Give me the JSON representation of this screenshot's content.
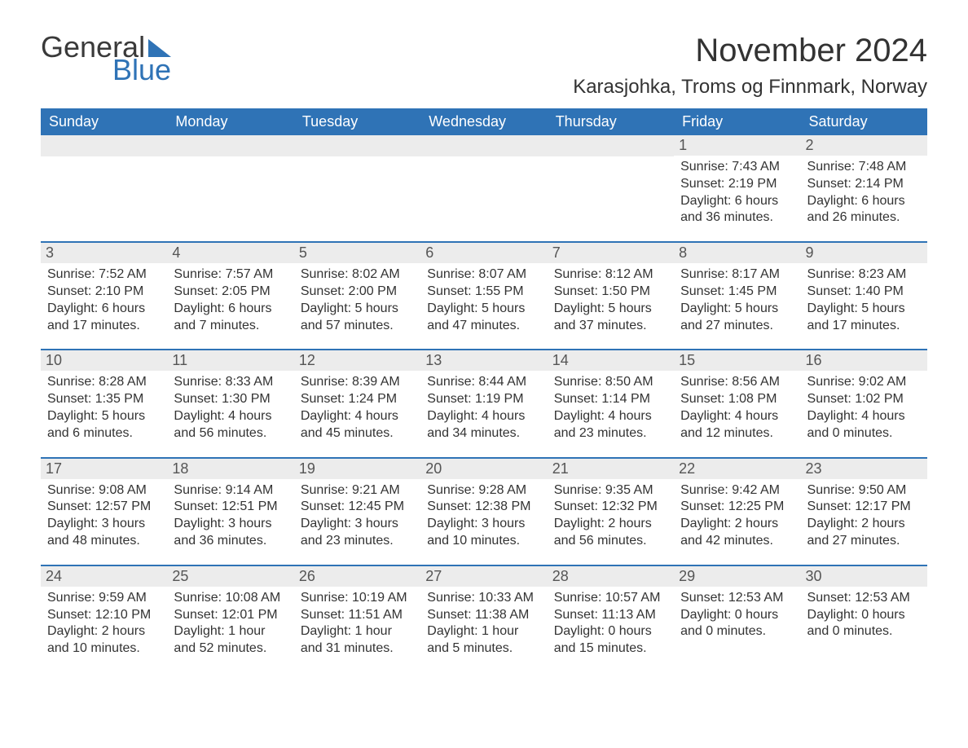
{
  "logo": {
    "word1": "General",
    "word2": "Blue"
  },
  "title": "November 2024",
  "location": "Karasjohka, Troms og Finnmark, Norway",
  "colors": {
    "header_bg": "#2f73b6",
    "header_text": "#ffffff",
    "daynum_bg": "#ececec",
    "text": "#333333",
    "page_bg": "#ffffff"
  },
  "fonts": {
    "title_size_pt": 40,
    "location_size_pt": 24,
    "dow_size_pt": 18,
    "daynum_size_pt": 18,
    "body_size_pt": 16
  },
  "days_of_week": [
    "Sunday",
    "Monday",
    "Tuesday",
    "Wednesday",
    "Thursday",
    "Friday",
    "Saturday"
  ],
  "weeks": [
    [
      null,
      null,
      null,
      null,
      null,
      {
        "n": "1",
        "lines": [
          "Sunrise: 7:43 AM",
          "Sunset: 2:19 PM",
          "Daylight: 6 hours and 36 minutes."
        ]
      },
      {
        "n": "2",
        "lines": [
          "Sunrise: 7:48 AM",
          "Sunset: 2:14 PM",
          "Daylight: 6 hours and 26 minutes."
        ]
      }
    ],
    [
      {
        "n": "3",
        "lines": [
          "Sunrise: 7:52 AM",
          "Sunset: 2:10 PM",
          "Daylight: 6 hours and 17 minutes."
        ]
      },
      {
        "n": "4",
        "lines": [
          "Sunrise: 7:57 AM",
          "Sunset: 2:05 PM",
          "Daylight: 6 hours and 7 minutes."
        ]
      },
      {
        "n": "5",
        "lines": [
          "Sunrise: 8:02 AM",
          "Sunset: 2:00 PM",
          "Daylight: 5 hours and 57 minutes."
        ]
      },
      {
        "n": "6",
        "lines": [
          "Sunrise: 8:07 AM",
          "Sunset: 1:55 PM",
          "Daylight: 5 hours and 47 minutes."
        ]
      },
      {
        "n": "7",
        "lines": [
          "Sunrise: 8:12 AM",
          "Sunset: 1:50 PM",
          "Daylight: 5 hours and 37 minutes."
        ]
      },
      {
        "n": "8",
        "lines": [
          "Sunrise: 8:17 AM",
          "Sunset: 1:45 PM",
          "Daylight: 5 hours and 27 minutes."
        ]
      },
      {
        "n": "9",
        "lines": [
          "Sunrise: 8:23 AM",
          "Sunset: 1:40 PM",
          "Daylight: 5 hours and 17 minutes."
        ]
      }
    ],
    [
      {
        "n": "10",
        "lines": [
          "Sunrise: 8:28 AM",
          "Sunset: 1:35 PM",
          "Daylight: 5 hours and 6 minutes."
        ]
      },
      {
        "n": "11",
        "lines": [
          "Sunrise: 8:33 AM",
          "Sunset: 1:30 PM",
          "Daylight: 4 hours and 56 minutes."
        ]
      },
      {
        "n": "12",
        "lines": [
          "Sunrise: 8:39 AM",
          "Sunset: 1:24 PM",
          "Daylight: 4 hours and 45 minutes."
        ]
      },
      {
        "n": "13",
        "lines": [
          "Sunrise: 8:44 AM",
          "Sunset: 1:19 PM",
          "Daylight: 4 hours and 34 minutes."
        ]
      },
      {
        "n": "14",
        "lines": [
          "Sunrise: 8:50 AM",
          "Sunset: 1:14 PM",
          "Daylight: 4 hours and 23 minutes."
        ]
      },
      {
        "n": "15",
        "lines": [
          "Sunrise: 8:56 AM",
          "Sunset: 1:08 PM",
          "Daylight: 4 hours and 12 minutes."
        ]
      },
      {
        "n": "16",
        "lines": [
          "Sunrise: 9:02 AM",
          "Sunset: 1:02 PM",
          "Daylight: 4 hours and 0 minutes."
        ]
      }
    ],
    [
      {
        "n": "17",
        "lines": [
          "Sunrise: 9:08 AM",
          "Sunset: 12:57 PM",
          "Daylight: 3 hours and 48 minutes."
        ]
      },
      {
        "n": "18",
        "lines": [
          "Sunrise: 9:14 AM",
          "Sunset: 12:51 PM",
          "Daylight: 3 hours and 36 minutes."
        ]
      },
      {
        "n": "19",
        "lines": [
          "Sunrise: 9:21 AM",
          "Sunset: 12:45 PM",
          "Daylight: 3 hours and 23 minutes."
        ]
      },
      {
        "n": "20",
        "lines": [
          "Sunrise: 9:28 AM",
          "Sunset: 12:38 PM",
          "Daylight: 3 hours and 10 minutes."
        ]
      },
      {
        "n": "21",
        "lines": [
          "Sunrise: 9:35 AM",
          "Sunset: 12:32 PM",
          "Daylight: 2 hours and 56 minutes."
        ]
      },
      {
        "n": "22",
        "lines": [
          "Sunrise: 9:42 AM",
          "Sunset: 12:25 PM",
          "Daylight: 2 hours and 42 minutes."
        ]
      },
      {
        "n": "23",
        "lines": [
          "Sunrise: 9:50 AM",
          "Sunset: 12:17 PM",
          "Daylight: 2 hours and 27 minutes."
        ]
      }
    ],
    [
      {
        "n": "24",
        "lines": [
          "Sunrise: 9:59 AM",
          "Sunset: 12:10 PM",
          "Daylight: 2 hours and 10 minutes."
        ]
      },
      {
        "n": "25",
        "lines": [
          "Sunrise: 10:08 AM",
          "Sunset: 12:01 PM",
          "Daylight: 1 hour and 52 minutes."
        ]
      },
      {
        "n": "26",
        "lines": [
          "Sunrise: 10:19 AM",
          "Sunset: 11:51 AM",
          "Daylight: 1 hour and 31 minutes."
        ]
      },
      {
        "n": "27",
        "lines": [
          "Sunrise: 10:33 AM",
          "Sunset: 11:38 AM",
          "Daylight: 1 hour and 5 minutes."
        ]
      },
      {
        "n": "28",
        "lines": [
          "Sunrise: 10:57 AM",
          "Sunset: 11:13 AM",
          "Daylight: 0 hours and 15 minutes."
        ]
      },
      {
        "n": "29",
        "lines": [
          "",
          "Sunset: 12:53 AM",
          "Daylight: 0 hours and 0 minutes."
        ]
      },
      {
        "n": "30",
        "lines": [
          "",
          "Sunset: 12:53 AM",
          "Daylight: 0 hours and 0 minutes."
        ]
      }
    ]
  ]
}
